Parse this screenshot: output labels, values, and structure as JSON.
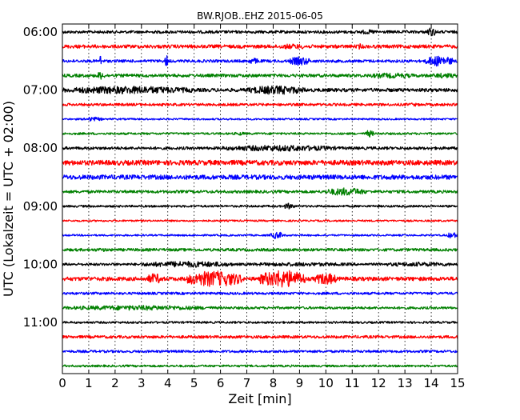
{
  "chart_data": {
    "type": "line",
    "title": "BW.RJOB..EHZ 2015-06-05",
    "xlabel": "Zeit  [min]",
    "ylabel": "UTC (Lokalzeit = UTC + 02:00)",
    "xlim": [
      0,
      15
    ],
    "x_ticks": [
      "0",
      "1",
      "2",
      "3",
      "4",
      "5",
      "6",
      "7",
      "8",
      "9",
      "10",
      "11",
      "12",
      "13",
      "14",
      "15"
    ],
    "y_tick_labels": [
      "06:00",
      "07:00",
      "08:00",
      "09:00",
      "10:00",
      "11:00"
    ],
    "grid": "vertical dotted lines at each minute",
    "trace_interval_min": 15,
    "color_cycle": [
      "#000000",
      "#ff0000",
      "#0000ff",
      "#008000"
    ],
    "traces": [
      {
        "start": "06:00",
        "color": "#000000",
        "base": 0.16,
        "events": [
          [
            4,
            9,
            0.14
          ],
          [
            11.2,
            12,
            0.26
          ],
          [
            13.8,
            14.2,
            0.5
          ]
        ]
      },
      {
        "start": "06:15",
        "color": "#ff0000",
        "base": 0.2,
        "events": [
          [
            2,
            7,
            0.2
          ],
          [
            8,
            9.5,
            0.3
          ],
          [
            11.2,
            11.4,
            0.35
          ]
        ]
      },
      {
        "start": "06:30",
        "color": "#0000ff",
        "base": 0.16,
        "events": [
          [
            1.4,
            1.5,
            0.7
          ],
          [
            3.9,
            4,
            0.8
          ],
          [
            7,
            7.5,
            0.35
          ],
          [
            8.6,
            9.4,
            0.5
          ],
          [
            13.8,
            14.8,
            0.6
          ]
        ]
      },
      {
        "start": "06:45",
        "color": "#008000",
        "base": 0.18,
        "events": [
          [
            1.3,
            1.6,
            0.45
          ],
          [
            4,
            5,
            0.18
          ],
          [
            11.5,
            13.5,
            0.3
          ],
          [
            14,
            15,
            0.3
          ]
        ]
      },
      {
        "start": "07:00",
        "color": "#000000",
        "base": 0.2,
        "events": [
          [
            0,
            5,
            0.45
          ],
          [
            7,
            9.2,
            0.5
          ]
        ]
      },
      {
        "start": "07:15",
        "color": "#ff0000",
        "base": 0.15,
        "events": [
          [
            1,
            4,
            0.12
          ],
          [
            13,
            13.6,
            0.2
          ]
        ]
      },
      {
        "start": "07:30",
        "color": "#0000ff",
        "base": 0.1,
        "events": [
          [
            0.8,
            1.5,
            0.25
          ]
        ]
      },
      {
        "start": "07:45",
        "color": "#008000",
        "base": 0.12,
        "events": [
          [
            6.5,
            7,
            0.2
          ],
          [
            11.5,
            11.8,
            0.4
          ]
        ]
      },
      {
        "start": "08:00",
        "color": "#000000",
        "base": 0.16,
        "events": [
          [
            6,
            10.5,
            0.35
          ]
        ]
      },
      {
        "start": "08:15",
        "color": "#ff0000",
        "base": 0.28,
        "events": []
      },
      {
        "start": "08:30",
        "color": "#0000ff",
        "base": 0.26,
        "events": [
          [
            6,
            9,
            0.1
          ]
        ]
      },
      {
        "start": "08:45",
        "color": "#008000",
        "base": 0.16,
        "events": [
          [
            10,
            11.5,
            0.45
          ]
        ]
      },
      {
        "start": "09:00",
        "color": "#000000",
        "base": 0.12,
        "events": [
          [
            8.4,
            8.8,
            0.35
          ]
        ]
      },
      {
        "start": "09:15",
        "color": "#ff0000",
        "base": 0.1,
        "events": []
      },
      {
        "start": "09:30",
        "color": "#0000ff",
        "base": 0.1,
        "events": [
          [
            7.9,
            8.4,
            0.4
          ],
          [
            14.6,
            15,
            0.35
          ]
        ]
      },
      {
        "start": "09:45",
        "color": "#008000",
        "base": 0.16,
        "events": [
          [
            1,
            2,
            0.2
          ]
        ]
      },
      {
        "start": "10:00",
        "color": "#000000",
        "base": 0.14,
        "events": [
          [
            3,
            6.5,
            0.35
          ],
          [
            6.5,
            11.5,
            0.22
          ],
          [
            12,
            15,
            0.25
          ]
        ]
      },
      {
        "start": "10:15",
        "color": "#ff0000",
        "base": 0.22,
        "events": [
          [
            3.2,
            3.8,
            0.6
          ],
          [
            4.7,
            6.8,
            0.9
          ],
          [
            7.5,
            9.2,
            1.0
          ],
          [
            9.6,
            10.4,
            0.7
          ]
        ]
      },
      {
        "start": "10:30",
        "color": "#0000ff",
        "base": 0.14,
        "events": [
          [
            10,
            11,
            0.15
          ]
        ]
      },
      {
        "start": "10:45",
        "color": "#008000",
        "base": 0.14,
        "events": [
          [
            0,
            5.8,
            0.28
          ]
        ]
      },
      {
        "start": "11:00",
        "color": "#000000",
        "base": 0.12,
        "events": []
      },
      {
        "start": "11:15",
        "color": "#ff0000",
        "base": 0.16,
        "events": [
          [
            10.5,
            11.5,
            0.1
          ]
        ]
      },
      {
        "start": "11:30",
        "color": "#0000ff",
        "base": 0.14,
        "events": []
      },
      {
        "start": "11:45",
        "color": "#008000",
        "base": 0.12,
        "events": []
      }
    ]
  }
}
